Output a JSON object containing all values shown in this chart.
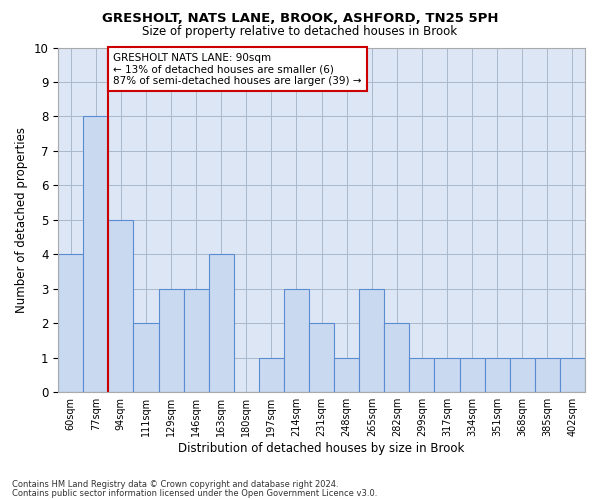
{
  "title1": "GRESHOLT, NATS LANE, BROOK, ASHFORD, TN25 5PH",
  "title2": "Size of property relative to detached houses in Brook",
  "xlabel": "Distribution of detached houses by size in Brook",
  "ylabel": "Number of detached properties",
  "categories": [
    "60sqm",
    "77sqm",
    "94sqm",
    "111sqm",
    "129sqm",
    "146sqm",
    "163sqm",
    "180sqm",
    "197sqm",
    "214sqm",
    "231sqm",
    "248sqm",
    "265sqm",
    "282sqm",
    "299sqm",
    "317sqm",
    "334sqm",
    "351sqm",
    "368sqm",
    "385sqm",
    "402sqm"
  ],
  "values": [
    4,
    8,
    5,
    2,
    3,
    3,
    4,
    0,
    1,
    3,
    2,
    1,
    3,
    2,
    1,
    1,
    1,
    1,
    1,
    1,
    1
  ],
  "bar_color": "#c8d9f0",
  "bar_edge_color": "#5b8bd0",
  "bar_linewidth": 0.8,
  "grid_color": "#aab8cc",
  "background_color": "#dce6f5",
  "ref_line_index": 1,
  "ref_line_color": "#cc0000",
  "annotation_text": "GRESHOLT NATS LANE: 90sqm\n← 13% of detached houses are smaller (6)\n87% of semi-detached houses are larger (39) →",
  "annotation_box_color": "#ffffff",
  "annotation_box_edge": "#cc0000",
  "ylim": [
    0,
    10
  ],
  "yticks": [
    0,
    1,
    2,
    3,
    4,
    5,
    6,
    7,
    8,
    9,
    10
  ],
  "footer1": "Contains HM Land Registry data © Crown copyright and database right 2024.",
  "footer2": "Contains public sector information licensed under the Open Government Licence v3.0."
}
